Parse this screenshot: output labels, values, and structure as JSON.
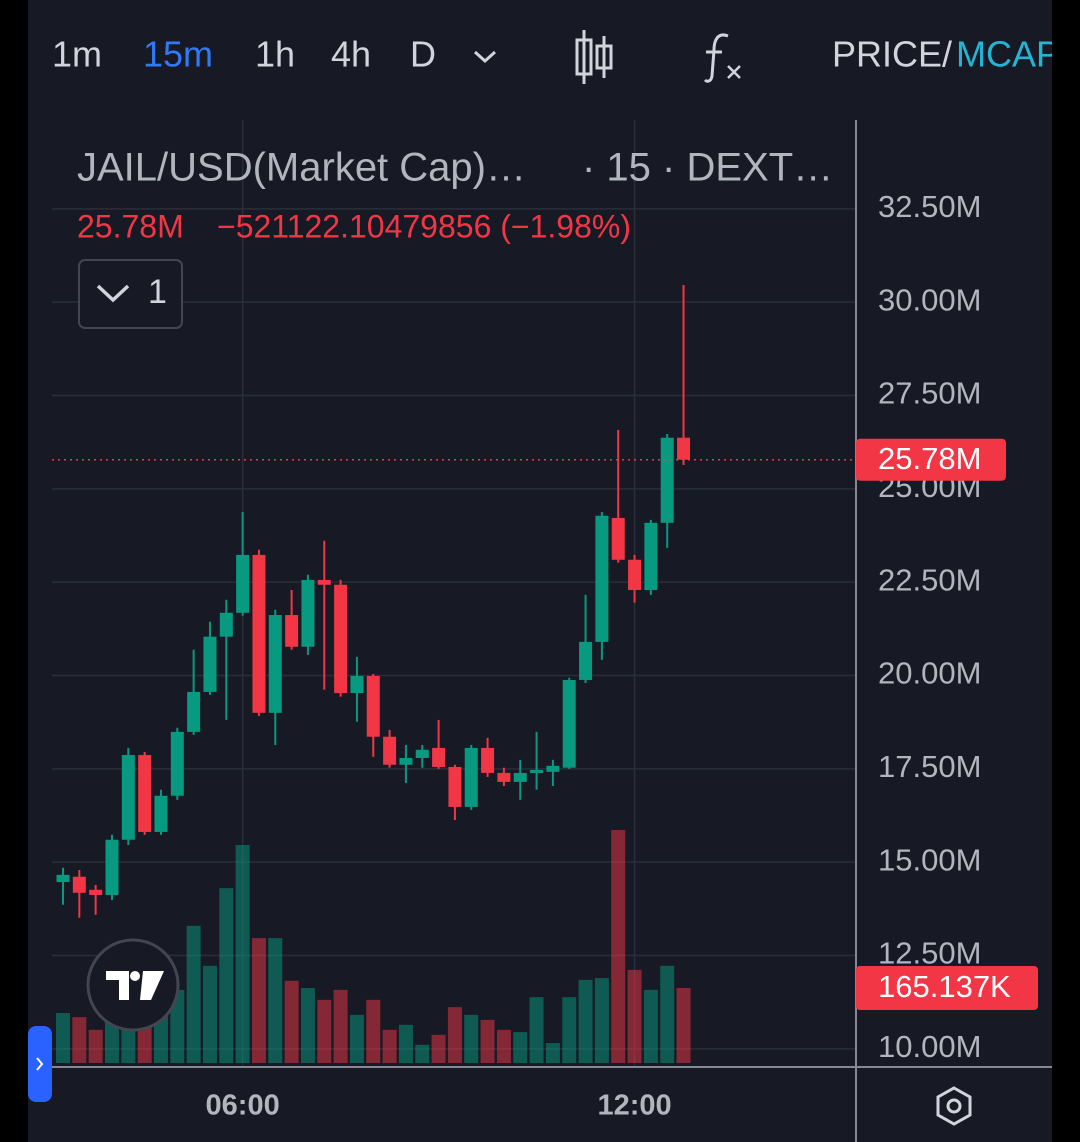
{
  "toolbar": {
    "intervals": [
      "1m",
      "15m",
      "1h",
      "4h",
      "D"
    ],
    "price": "PRICE/",
    "mcap": "MCAP"
  },
  "indicator_count": 1,
  "chart_data": {
    "type": "candlestick",
    "title": "JAIL/USD(Market Cap)…",
    "subtitle": "· 15 · DEXT…",
    "last": {
      "value": 25.78,
      "label": "25.78M"
    },
    "change": "−521122.10479856 (−1.98%)",
    "categories": [
      null,
      null,
      null,
      null,
      null,
      null,
      null,
      null,
      null,
      null,
      null,
      "06:00",
      null,
      null,
      null,
      null,
      null,
      null,
      null,
      null,
      null,
      null,
      null,
      null,
      null,
      null,
      null,
      null,
      null,
      null,
      null,
      null,
      null,
      null,
      null,
      "12:00",
      null,
      null,
      null
    ],
    "open": [
      14.47,
      14.61,
      14.26,
      14.12,
      15.6,
      17.87,
      15.81,
      16.78,
      18.49,
      19.56,
      21.04,
      21.68,
      23.23,
      19.0,
      21.62,
      20.77,
      22.56,
      22.43,
      19.53,
      19.99,
      18.36,
      17.61,
      17.79,
      18.06,
      17.55,
      16.48,
      18.06,
      17.39,
      17.15,
      17.39,
      17.42,
      17.53,
      19.88,
      20.9,
      24.22,
      23.1,
      22.29,
      24.09,
      26.37
    ],
    "high": [
      14.85,
      14.79,
      14.39,
      15.73,
      18.06,
      17.95,
      16.94,
      18.6,
      20.69,
      21.44,
      22.03,
      24.38,
      23.37,
      21.76,
      22.29,
      22.7,
      23.61,
      22.56,
      20.5,
      20.04,
      18.54,
      18.14,
      18.14,
      18.81,
      17.61,
      18.14,
      18.33,
      17.53,
      17.74,
      18.49,
      17.74,
      19.94,
      22.16,
      24.38,
      26.58,
      23.23,
      24.17,
      26.47,
      30.46
    ],
    "low": [
      13.86,
      13.51,
      13.59,
      13.99,
      15.46,
      15.73,
      15.73,
      16.67,
      18.41,
      19.48,
      18.81,
      21.6,
      18.92,
      18.14,
      20.69,
      20.55,
      19.62,
      19.43,
      18.76,
      17.82,
      17.53,
      17.12,
      17.53,
      17.5,
      16.13,
      16.4,
      17.28,
      17.04,
      16.67,
      16.94,
      17.04,
      17.5,
      19.8,
      20.42,
      23.02,
      21.95,
      22.16,
      23.42,
      25.64
    ],
    "close": [
      14.66,
      14.18,
      14.12,
      15.6,
      17.87,
      15.81,
      16.78,
      18.49,
      19.56,
      21.04,
      21.68,
      23.23,
      19.0,
      21.62,
      20.77,
      22.56,
      22.43,
      19.53,
      19.99,
      18.36,
      17.61,
      17.79,
      18.01,
      17.55,
      16.48,
      18.06,
      17.39,
      17.15,
      17.39,
      17.47,
      17.58,
      19.88,
      20.9,
      24.28,
      23.1,
      22.29,
      24.09,
      26.37,
      25.78
    ],
    "volume": [
      110,
      101,
      73,
      95,
      112,
      84,
      112,
      161,
      302,
      214,
      385,
      480,
      275,
      275,
      181,
      165,
      139,
      161,
      106,
      139,
      73,
      84,
      40,
      62,
      123,
      106,
      95,
      73,
      68,
      145,
      44,
      145,
      183,
      187,
      513,
      205,
      161,
      214,
      165.137
    ],
    "volume_last": {
      "value": 165.137,
      "label": "165.137K"
    },
    "ylim": [
      9.54,
      34.88
    ],
    "yticks": [
      {
        "value": 10,
        "label": "10.00M"
      },
      {
        "value": 12.5,
        "label": "12.50M"
      },
      {
        "value": 15,
        "label": "15.00M"
      },
      {
        "value": 17.5,
        "label": "17.50M"
      },
      {
        "value": 20,
        "label": "20.00M"
      },
      {
        "value": 22.5,
        "label": "22.50M"
      },
      {
        "value": 25,
        "label": "25.00M"
      },
      {
        "value": 27.5,
        "label": "27.50M"
      },
      {
        "value": 30,
        "label": "30.00M"
      },
      {
        "value": 32.5,
        "label": "32.50M"
      }
    ],
    "up_color": "#089981",
    "down_color": "#f23645",
    "grid": true
  }
}
